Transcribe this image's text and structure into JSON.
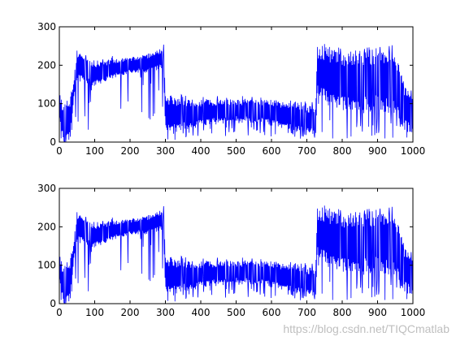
{
  "chart_data": [
    {
      "type": "line",
      "title": "",
      "xlabel": "",
      "ylabel": "",
      "xlim": [
        0,
        1000
      ],
      "ylim": [
        0,
        300
      ],
      "xticks": [
        0,
        100,
        200,
        300,
        400,
        500,
        600,
        700,
        800,
        900,
        1000
      ],
      "yticks": [
        0,
        100,
        200,
        300
      ],
      "grid": false,
      "series": [
        {
          "color": "#0000ff",
          "profile": {
            "x": [
              0,
              10,
              20,
              30,
              40,
              50,
              100,
              150,
              200,
              250,
              290,
              295,
              300,
              350,
              400,
              450,
              500,
              550,
              600,
              650,
              700,
              725,
              730,
              750,
              800,
              850,
              900,
              950,
              975,
              1000
            ],
            "y_upper": [
              130,
              100,
              110,
              120,
              160,
              235,
              205,
              215,
              220,
              230,
              245,
              245,
              120,
              115,
              110,
              110,
              110,
              110,
              110,
              100,
              95,
              95,
              250,
              250,
              235,
              240,
              240,
              245,
              150,
              120
            ],
            "y_lower": [
              60,
              0,
              0,
              0,
              100,
              160,
              145,
              165,
              180,
              180,
              190,
              190,
              20,
              30,
              40,
              50,
              55,
              50,
              45,
              30,
              20,
              15,
              120,
              100,
              80,
              80,
              85,
              60,
              30,
              20
            ]
          }
        }
      ]
    },
    {
      "type": "line",
      "title": "",
      "xlabel": "",
      "ylabel": "",
      "xlim": [
        0,
        1000
      ],
      "ylim": [
        0,
        300
      ],
      "xticks": [
        0,
        100,
        200,
        300,
        400,
        500,
        600,
        700,
        800,
        900,
        1000
      ],
      "yticks": [
        0,
        100,
        200,
        300
      ],
      "grid": false,
      "series": [
        {
          "color": "#0000ff",
          "profile": {
            "x": [
              0,
              10,
              20,
              30,
              40,
              50,
              100,
              150,
              200,
              250,
              290,
              295,
              300,
              350,
              400,
              450,
              500,
              550,
              600,
              650,
              700,
              725,
              730,
              750,
              800,
              850,
              900,
              950,
              975,
              1000
            ],
            "y_upper": [
              130,
              100,
              110,
              120,
              160,
              235,
              205,
              215,
              220,
              230,
              245,
              245,
              120,
              115,
              110,
              110,
              110,
              110,
              110,
              100,
              95,
              95,
              250,
              250,
              235,
              240,
              240,
              245,
              150,
              120
            ],
            "y_lower": [
              60,
              0,
              0,
              0,
              100,
              160,
              145,
              165,
              180,
              180,
              190,
              190,
              20,
              30,
              40,
              50,
              55,
              50,
              45,
              30,
              20,
              15,
              120,
              100,
              80,
              80,
              85,
              60,
              30,
              20
            ]
          }
        }
      ]
    }
  ],
  "watermark": "https://blog.csdn.net/TIQCmatlab"
}
